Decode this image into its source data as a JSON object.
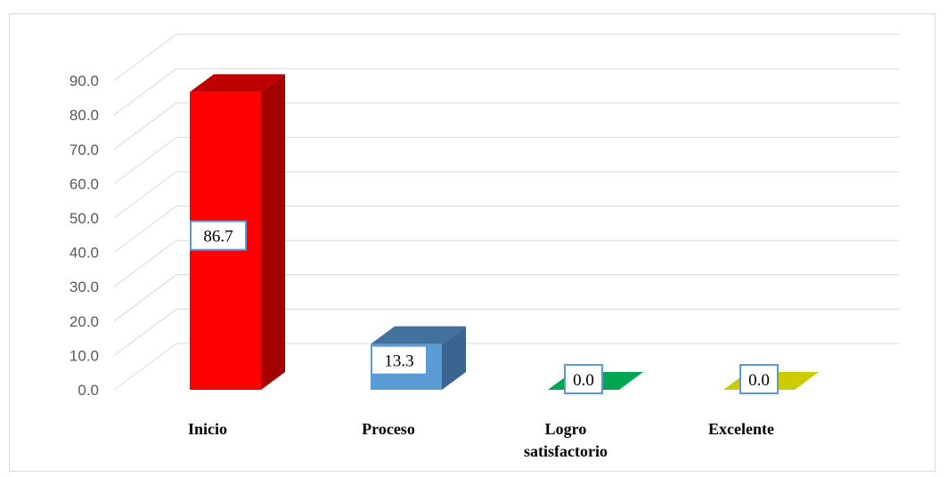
{
  "chart_data": {
    "type": "bar",
    "title": "",
    "xlabel": "",
    "ylabel": "",
    "categories": [
      {
        "lines": [
          "Inicio"
        ]
      },
      {
        "lines": [
          "Proceso"
        ]
      },
      {
        "lines": [
          "Logro",
          "satisfactorio"
        ]
      },
      {
        "lines": [
          "Excelente"
        ]
      }
    ],
    "values": [
      86.7,
      13.3,
      0.0,
      0.0
    ],
    "data_labels": [
      "86.7",
      "13.3",
      "0.0",
      "0.0"
    ],
    "ylim": [
      0,
      90
    ],
    "yticks": [
      "0.0",
      "10.0",
      "20.0",
      "30.0",
      "40.0",
      "50.0",
      "60.0",
      "70.0",
      "80.0",
      "90.0"
    ],
    "grid": true,
    "legend": "none",
    "style": "3d-column",
    "colors": [
      {
        "front": "#ff0000",
        "top": "#c00000",
        "side": "#a50000"
      },
      {
        "front": "#5b9bd5",
        "top": "#41719c",
        "side": "#3a6590"
      },
      {
        "front": "#00a651",
        "top": "#00a651",
        "side": "#008a43"
      },
      {
        "front": "#d4d400",
        "top": "#cccc00",
        "side": "#b3b300"
      }
    ],
    "gridline_color": "#d9d9d9",
    "label_box_border": "#5b9bd5"
  }
}
